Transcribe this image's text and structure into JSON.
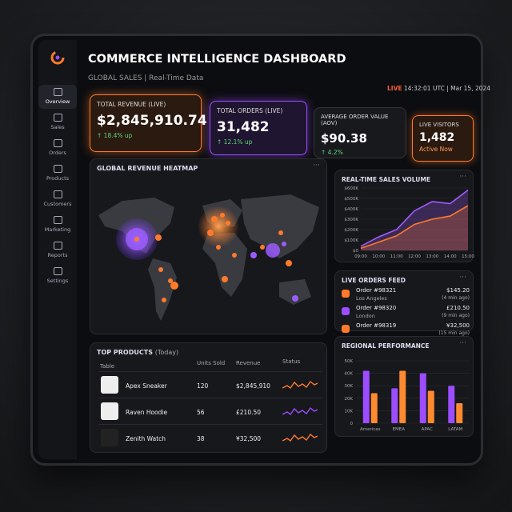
{
  "header": {
    "title": "COMMERCE INTELLIGENCE DASHBOARD",
    "subtitle": "GLOBAL SALES | Real-Time Data",
    "live": "LIVE",
    "time": "14:32:01 UTC | Mar 15, 2024"
  },
  "sidebar": [
    {
      "label": "Overview"
    },
    {
      "label": "Sales"
    },
    {
      "label": "Orders"
    },
    {
      "label": "Products"
    },
    {
      "label": "Customers"
    },
    {
      "label": "Marketing"
    },
    {
      "label": "Reports"
    },
    {
      "label": "Settings"
    }
  ],
  "kpis": [
    {
      "label": "TOTAL REVENUE (LIVE)",
      "value": "$2,845,910.74",
      "delta": "↑ 18.4% up"
    },
    {
      "label": "TOTAL ORDERS (LIVE)",
      "value": "31,482",
      "delta": "↑ 12.1% up"
    },
    {
      "label": "AVERAGE ORDER VALUE (AOV)",
      "value": "$90.38",
      "delta": "↑ 4.2%"
    },
    {
      "label": "LIVE VISITORS",
      "value": "1,482",
      "delta": "Active Now"
    }
  ],
  "heatmap": {
    "title": "GLOBAL REVENUE HEATMAP"
  },
  "sales_volume": {
    "type": "line",
    "title": "REAL-TIME SALES VOLUME",
    "categories": [
      "09:00",
      "10:00",
      "11:00",
      "12:00",
      "13:00",
      "14:00",
      "15:00"
    ],
    "series": [
      {
        "color": "#a35cff",
        "values": [
          40,
          130,
          200,
          380,
          470,
          450,
          580
        ]
      },
      {
        "color": "#ff7a2a",
        "values": [
          20,
          80,
          140,
          250,
          300,
          330,
          430
        ]
      }
    ],
    "ylim": [
      0,
      600
    ],
    "yticks": [
      {
        "value": 0,
        "label": "$0"
      },
      {
        "value": 100,
        "label": "$100K"
      },
      {
        "value": 200,
        "label": "$200K"
      },
      {
        "value": 300,
        "label": "$300K"
      },
      {
        "value": 400,
        "label": "$400K"
      },
      {
        "value": 500,
        "label": "$500K"
      },
      {
        "value": 600,
        "label": "$600K"
      }
    ]
  },
  "orders_feed": {
    "title": "LIVE ORDERS FEED",
    "orders": [
      {
        "id": "Order #98321",
        "city": "Los Angeles",
        "amount": "$145.20",
        "ago": "(4 min ago)"
      },
      {
        "id": "Order #98320",
        "city": "London",
        "amount": "£210.50",
        "ago": "(9 min ago)"
      },
      {
        "id": "Order #98319",
        "amount": "¥32,500",
        "ago": "(15 min ago)"
      }
    ]
  },
  "top_products": {
    "title": "TOP PRODUCTS",
    "period": "(Today)",
    "columns": [
      "Table",
      "Units Sold",
      "Revenue",
      "Status"
    ],
    "rows": [
      [
        "Apex Sneaker",
        "120",
        "$2,845,910"
      ],
      [
        "Raven Hoodie",
        "56",
        "£210.50"
      ],
      [
        "Zenith Watch",
        "38",
        "¥32,500"
      ]
    ]
  },
  "regional": {
    "type": "bar",
    "title": "REGIONAL PERFORMANCE",
    "categories": [
      "Americas",
      "EMEA",
      "APAC",
      "LATAM"
    ],
    "series": [
      {
        "color": "#9b4dff",
        "values": [
          42,
          28,
          40,
          30
        ]
      },
      {
        "color": "#ff8a30",
        "values": [
          24,
          42,
          26,
          16
        ]
      }
    ],
    "ylim": [
      0,
      50
    ],
    "yticks": [
      0,
      {
        "value": 10,
        "label": "10K"
      },
      {
        "value": 20,
        "label": "20K"
      },
      {
        "value": 30,
        "label": "30K"
      },
      {
        "value": 40,
        "label": "40K"
      },
      {
        "value": 50,
        "label": "50K"
      }
    ]
  }
}
